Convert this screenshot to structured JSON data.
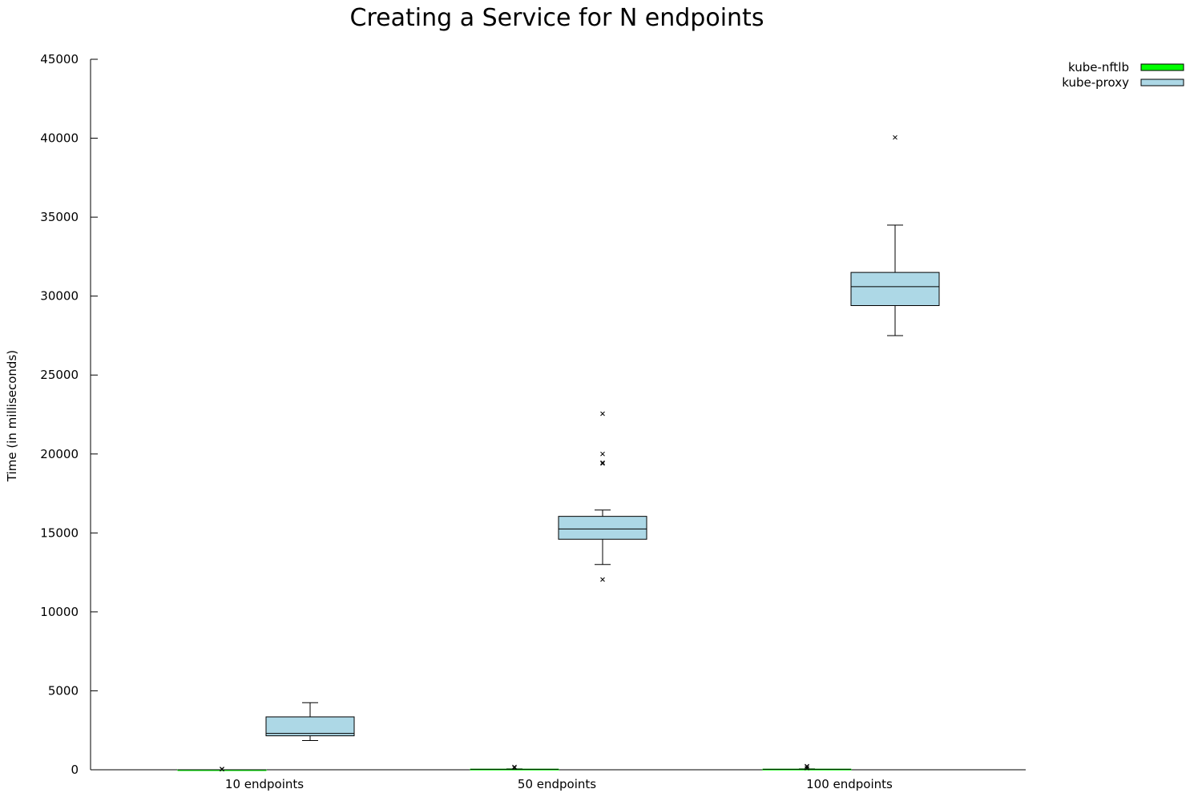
{
  "chart_data": {
    "type": "box",
    "title": "Creating a Service for N endpoints",
    "xlabel": "",
    "ylabel": "Time (in milliseconds)",
    "ylim": [
      0,
      45000
    ],
    "yticks": [
      0,
      5000,
      10000,
      15000,
      20000,
      25000,
      30000,
      35000,
      40000,
      45000
    ],
    "categories": [
      "10 endpoints",
      "50 endpoints",
      "100 endpoints"
    ],
    "legend_position": "top-right",
    "grid": false,
    "series": [
      {
        "name": "kube-nftlb",
        "color": "#00ff00",
        "boxes": [
          {
            "whisker_low": 0,
            "q1": 0,
            "median": 0,
            "q3": 0,
            "whisker_high": 0,
            "outliers": [
              30,
              50
            ]
          },
          {
            "whisker_low": 10,
            "q1": 20,
            "median": 30,
            "q3": 40,
            "whisker_high": 60,
            "outliers": [
              130,
              180
            ]
          },
          {
            "whisker_low": 10,
            "q1": 20,
            "median": 30,
            "q3": 40,
            "whisker_high": 60,
            "outliers": [
              100,
              200,
              230
            ]
          }
        ]
      },
      {
        "name": "kube-proxy",
        "color": "#add8e6",
        "boxes": [
          {
            "whisker_low": 1850,
            "q1": 2150,
            "median": 2300,
            "q3": 3350,
            "whisker_high": 4250,
            "outliers": []
          },
          {
            "whisker_low": 13000,
            "q1": 14600,
            "median": 15250,
            "q3": 16050,
            "whisker_high": 16450,
            "outliers": [
              12050,
              19400,
              19450,
              20000,
              22550
            ]
          },
          {
            "whisker_low": 27500,
            "q1": 29400,
            "median": 30600,
            "q3": 31500,
            "whisker_high": 34500,
            "outliers": [
              40050
            ]
          }
        ]
      }
    ]
  }
}
